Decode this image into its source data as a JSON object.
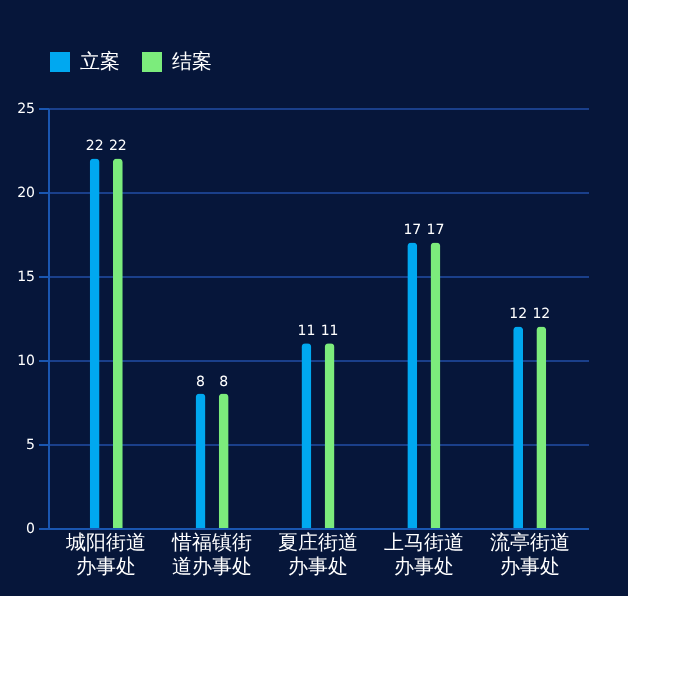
{
  "chart_data": {
    "type": "bar",
    "categories": [
      "城阳街道办事处",
      "惜福镇街道办事处",
      "夏庄街道办事处",
      "上马街道办事处",
      "流亭街道办事处"
    ],
    "series": [
      {
        "name": "立案",
        "color": "#00a8f0",
        "values": [
          22,
          8,
          11,
          17,
          12
        ]
      },
      {
        "name": "结案",
        "color": "#7cec7c",
        "values": [
          22,
          8,
          11,
          17,
          12
        ]
      }
    ],
    "ylim": [
      0,
      25
    ],
    "yticks": [
      0,
      5,
      10,
      15,
      20,
      25
    ],
    "grid": "y",
    "legend": "top",
    "data_labels": true
  }
}
